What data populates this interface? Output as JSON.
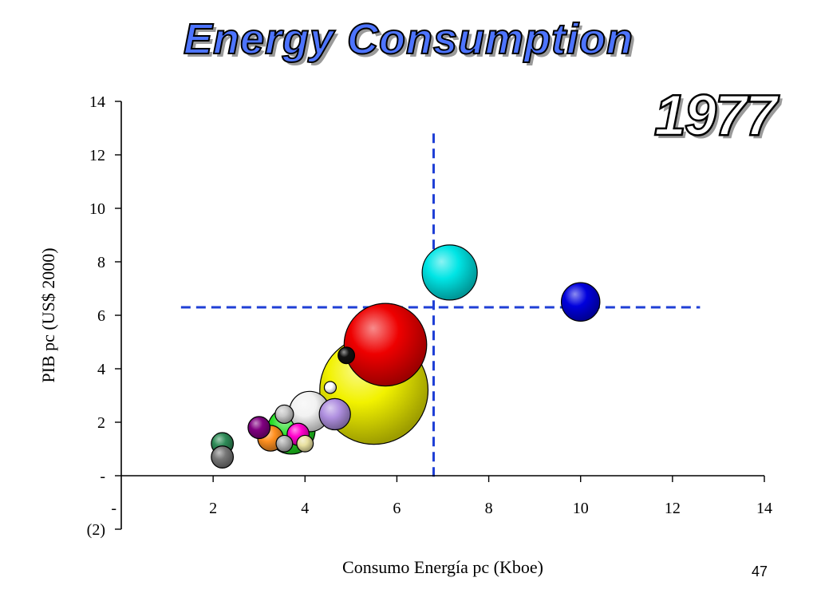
{
  "slide": {
    "title": "Energy Consumption",
    "year": "1977",
    "page_number": "47"
  },
  "chart_data": {
    "type": "scatter",
    "title": "Energy Consumption",
    "subtitle": "1977",
    "xlabel": "Consumo Energía pc  (Kboe)",
    "ylabel": "PIB pc  (US$ 2000)",
    "xlim": [
      0,
      14
    ],
    "ylim": [
      -2,
      14
    ],
    "x_ticks": [
      {
        "value": 2,
        "label": "2"
      },
      {
        "value": 4,
        "label": "4"
      },
      {
        "value": 6,
        "label": "6"
      },
      {
        "value": 8,
        "label": "8"
      },
      {
        "value": 10,
        "label": "10"
      },
      {
        "value": 12,
        "label": "12"
      },
      {
        "value": 14,
        "label": "14"
      }
    ],
    "y_ticks": [
      {
        "value": 14,
        "label": "14"
      },
      {
        "value": 12,
        "label": "12"
      },
      {
        "value": 10,
        "label": "10"
      },
      {
        "value": 8,
        "label": "8"
      },
      {
        "value": 6,
        "label": "6"
      },
      {
        "value": 4,
        "label": "4"
      },
      {
        "value": 2,
        "label": "2"
      },
      {
        "value": 0,
        "label": "-"
      },
      {
        "value": -2,
        "label": "(2)"
      }
    ],
    "x_origin_label": "-",
    "reference_lines": [
      {
        "orientation": "vertical",
        "x": 6.8,
        "y_from": -0.2,
        "y_to": 12.8,
        "color": "#1f3fd6"
      },
      {
        "orientation": "horizontal",
        "y": 6.3,
        "x_from": 1.3,
        "x_to": 12.6,
        "color": "#1f3fd6"
      }
    ],
    "bubble_size_unit": "relative",
    "points": [
      {
        "x": 5.5,
        "y": 3.2,
        "size": 5.9,
        "color": "#f2f200"
      },
      {
        "x": 5.75,
        "y": 4.9,
        "size": 4.5,
        "color": "#ee0000"
      },
      {
        "x": 7.15,
        "y": 7.6,
        "size": 3.0,
        "color": "#00e5e5"
      },
      {
        "x": 10.0,
        "y": 6.5,
        "size": 2.1,
        "color": "#0000dd"
      },
      {
        "x": 3.7,
        "y": 1.7,
        "size": 2.6,
        "color": "#22dd22"
      },
      {
        "x": 4.1,
        "y": 2.4,
        "size": 2.2,
        "color": "#f2f2f2"
      },
      {
        "x": 4.65,
        "y": 2.3,
        "size": 1.7,
        "color": "#b090e0"
      },
      {
        "x": 3.25,
        "y": 1.4,
        "size": 1.4,
        "color": "#ff9020"
      },
      {
        "x": 3.0,
        "y": 1.8,
        "size": 1.2,
        "color": "#800080"
      },
      {
        "x": 3.85,
        "y": 1.55,
        "size": 1.2,
        "color": "#ff00cc"
      },
      {
        "x": 3.55,
        "y": 2.3,
        "size": 1.0,
        "color": "#c8c8c8"
      },
      {
        "x": 3.55,
        "y": 1.2,
        "size": 0.9,
        "color": "#b0b0b0"
      },
      {
        "x": 4.0,
        "y": 1.2,
        "size": 0.9,
        "color": "#e8e0a0"
      },
      {
        "x": 2.2,
        "y": 1.2,
        "size": 1.2,
        "color": "#2e8b57"
      },
      {
        "x": 2.2,
        "y": 0.7,
        "size": 1.2,
        "color": "#777777"
      },
      {
        "x": 4.9,
        "y": 4.5,
        "size": 0.9,
        "color": "#111111"
      },
      {
        "x": 4.55,
        "y": 3.3,
        "size": 0.65,
        "color": "#ffffff"
      }
    ],
    "grid": false,
    "legend": "none"
  }
}
